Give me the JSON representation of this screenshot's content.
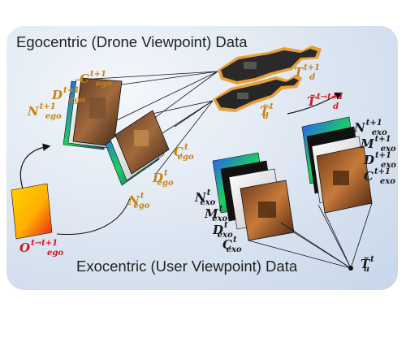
{
  "titles": {
    "ego": "Egocentric (Drone Viewpoint) Data",
    "exo": "Exocentric (User Viewpoint) Data"
  },
  "labels": {
    "T_next": {
      "base": "T",
      "sup": "t+1",
      "sub": "d"
    },
    "T_tilde": {
      "base": "T̃",
      "sup": "t",
      "sub": "d"
    },
    "T_delta": {
      "base": "T̃",
      "sup": "t→t+1",
      "sub": "d"
    },
    "C_ego_next": {
      "base": "C",
      "sup": "t+1",
      "sub": "ego"
    },
    "D_ego_next": {
      "base": "D",
      "sup": "t+1",
      "sub": "ego"
    },
    "N_ego_next": {
      "base": "N",
      "sup": "t+1",
      "sub": "ego"
    },
    "C_ego": {
      "base": "C",
      "sup": "t",
      "sub": "ego"
    },
    "D_ego": {
      "base": "D",
      "sup": "t",
      "sub": "ego"
    },
    "N_ego": {
      "base": "N",
      "sup": "t",
      "sub": "ego"
    },
    "O_ego": {
      "base": "O",
      "sup": "t→t+1",
      "sub": "ego"
    },
    "N_exo_next": {
      "base": "N",
      "sup": "t+1",
      "sub": "exo"
    },
    "M_exo_next": {
      "base": "M",
      "sup": "t+1",
      "sub": "exo"
    },
    "D_exo_next": {
      "base": "D",
      "sup": "t+1",
      "sub": "exo"
    },
    "C_exo_next": {
      "base": "C",
      "sup": "t+1",
      "sub": "exo"
    },
    "N_exo": {
      "base": "N",
      "sup": "t",
      "sub": "exo"
    },
    "M_exo": {
      "base": "M",
      "sup": "t",
      "sub": "exo"
    },
    "D_exo": {
      "base": "D",
      "sup": "t",
      "sub": "exo"
    },
    "C_exo": {
      "base": "C",
      "sup": "t",
      "sub": "exo"
    },
    "T_user": {
      "base": "T̃",
      "sup": "t",
      "sub": "u"
    }
  },
  "colors": {
    "orange": "#c8820e",
    "red": "#d2141a",
    "black": "#1a1a1a"
  }
}
